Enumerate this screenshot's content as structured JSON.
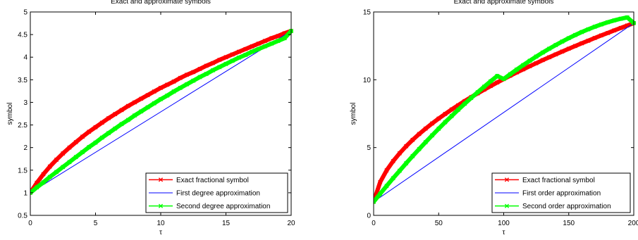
{
  "chart_data": [
    {
      "type": "line",
      "title": "Exact and approximate symbols",
      "xlabel": "τ",
      "ylabel": "symbol",
      "xlim": [
        0,
        20
      ],
      "ylim": [
        0.5,
        5
      ],
      "xticks": [
        0,
        5,
        10,
        15,
        20
      ],
      "yticks": [
        0.5,
        1,
        1.5,
        2,
        2.5,
        3,
        3.5,
        4,
        4.5,
        5
      ],
      "grid": false,
      "legend_position": "bottom-right",
      "series": [
        {
          "name": "Exact fractional symbol",
          "color": "#ff0000",
          "marker": "x",
          "x": [
            0,
            0.5,
            1,
            1.5,
            2,
            2.5,
            3,
            3.5,
            4,
            4.5,
            5,
            5.5,
            6,
            6.5,
            7,
            7.5,
            8,
            8.5,
            9,
            9.5,
            10,
            10.5,
            11,
            11.5,
            12,
            12.5,
            13,
            13.5,
            14,
            14.5,
            15,
            15.5,
            16,
            16.5,
            17,
            17.5,
            18,
            18.5,
            19,
            19.5,
            20
          ],
          "y": [
            1.0,
            1.22,
            1.41,
            1.58,
            1.73,
            1.87,
            2.0,
            2.12,
            2.24,
            2.35,
            2.45,
            2.55,
            2.65,
            2.74,
            2.83,
            2.92,
            3.0,
            3.08,
            3.16,
            3.24,
            3.32,
            3.39,
            3.46,
            3.54,
            3.61,
            3.67,
            3.74,
            3.81,
            3.87,
            3.94,
            4.0,
            4.06,
            4.12,
            4.18,
            4.24,
            4.3,
            4.36,
            4.42,
            4.47,
            4.53,
            4.58
          ]
        },
        {
          "name": "First degree approximation",
          "color": "#0000ff",
          "marker": "none",
          "x": [
            0,
            20
          ],
          "y": [
            1.0,
            4.58
          ]
        },
        {
          "name": "Second degree approximation",
          "color": "#00ff00",
          "marker": "x",
          "x": [
            0,
            0.5,
            1,
            1.5,
            2,
            2.5,
            3,
            3.5,
            4,
            4.5,
            5,
            5.5,
            6,
            6.5,
            7,
            7.5,
            8,
            8.5,
            9,
            9.5,
            10,
            10.5,
            11,
            11.5,
            12,
            12.5,
            13,
            13.5,
            14,
            14.5,
            15,
            15.5,
            16,
            16.5,
            17,
            17.5,
            18,
            18.5,
            19,
            19.5,
            20
          ],
          "y": [
            1.0,
            1.12,
            1.23,
            1.35,
            1.46,
            1.57,
            1.68,
            1.79,
            1.9,
            2.01,
            2.11,
            2.22,
            2.32,
            2.42,
            2.52,
            2.61,
            2.71,
            2.8,
            2.89,
            2.98,
            3.07,
            3.15,
            3.24,
            3.32,
            3.4,
            3.48,
            3.56,
            3.63,
            3.71,
            3.78,
            3.85,
            3.92,
            3.99,
            4.05,
            4.12,
            4.18,
            4.24,
            4.3,
            4.36,
            4.42,
            4.58
          ]
        }
      ]
    },
    {
      "type": "line",
      "title": "Exact and approximate symbols",
      "xlabel": "τ",
      "ylabel": "symbol",
      "xlim": [
        0,
        200
      ],
      "ylim": [
        0,
        15
      ],
      "xticks": [
        0,
        50,
        100,
        150,
        200
      ],
      "yticks": [
        0,
        5,
        10,
        15
      ],
      "grid": false,
      "legend_position": "bottom-right",
      "series": [
        {
          "name": "Exact fractional symbol",
          "color": "#ff0000",
          "marker": "x",
          "x": [
            0,
            5,
            10,
            15,
            20,
            25,
            30,
            35,
            40,
            45,
            50,
            55,
            60,
            65,
            70,
            75,
            80,
            85,
            90,
            95,
            100,
            105,
            110,
            115,
            120,
            125,
            130,
            135,
            140,
            145,
            150,
            155,
            160,
            165,
            170,
            175,
            180,
            185,
            190,
            195,
            200
          ],
          "y": [
            1.0,
            2.45,
            3.32,
            4.0,
            4.58,
            5.1,
            5.57,
            6.0,
            6.4,
            6.78,
            7.14,
            7.48,
            7.81,
            8.12,
            8.43,
            8.72,
            9.0,
            9.27,
            9.54,
            9.8,
            10.05,
            10.3,
            10.54,
            10.77,
            11.0,
            11.22,
            11.45,
            11.66,
            11.87,
            12.08,
            12.29,
            12.49,
            12.69,
            12.88,
            13.08,
            13.27,
            13.45,
            13.64,
            13.82,
            14.0,
            14.18
          ]
        },
        {
          "name": "First order approximation",
          "color": "#0000ff",
          "marker": "none",
          "x": [
            0,
            200
          ],
          "y": [
            1.0,
            14.18
          ]
        },
        {
          "name": "Second order approximation",
          "color": "#00ff00",
          "marker": "x",
          "x": [
            0,
            5,
            10,
            15,
            20,
            25,
            30,
            35,
            40,
            45,
            50,
            55,
            60,
            65,
            70,
            75,
            80,
            85,
            90,
            95,
            100,
            105,
            110,
            115,
            120,
            125,
            130,
            135,
            140,
            145,
            150,
            155,
            160,
            165,
            170,
            175,
            180,
            185,
            190,
            195,
            200
          ],
          "y": [
            1.0,
            1.59,
            2.17,
            2.74,
            3.29,
            3.84,
            4.37,
            4.89,
            5.4,
            5.9,
            6.39,
            6.87,
            7.33,
            7.79,
            8.23,
            8.66,
            9.08,
            9.49,
            9.89,
            10.28,
            10.06,
            10.41,
            10.75,
            11.08,
            11.4,
            11.71,
            12.01,
            12.29,
            12.56,
            12.82,
            13.07,
            13.3,
            13.52,
            13.72,
            13.91,
            14.08,
            14.24,
            14.38,
            14.5,
            14.6,
            14.18
          ]
        }
      ]
    }
  ]
}
